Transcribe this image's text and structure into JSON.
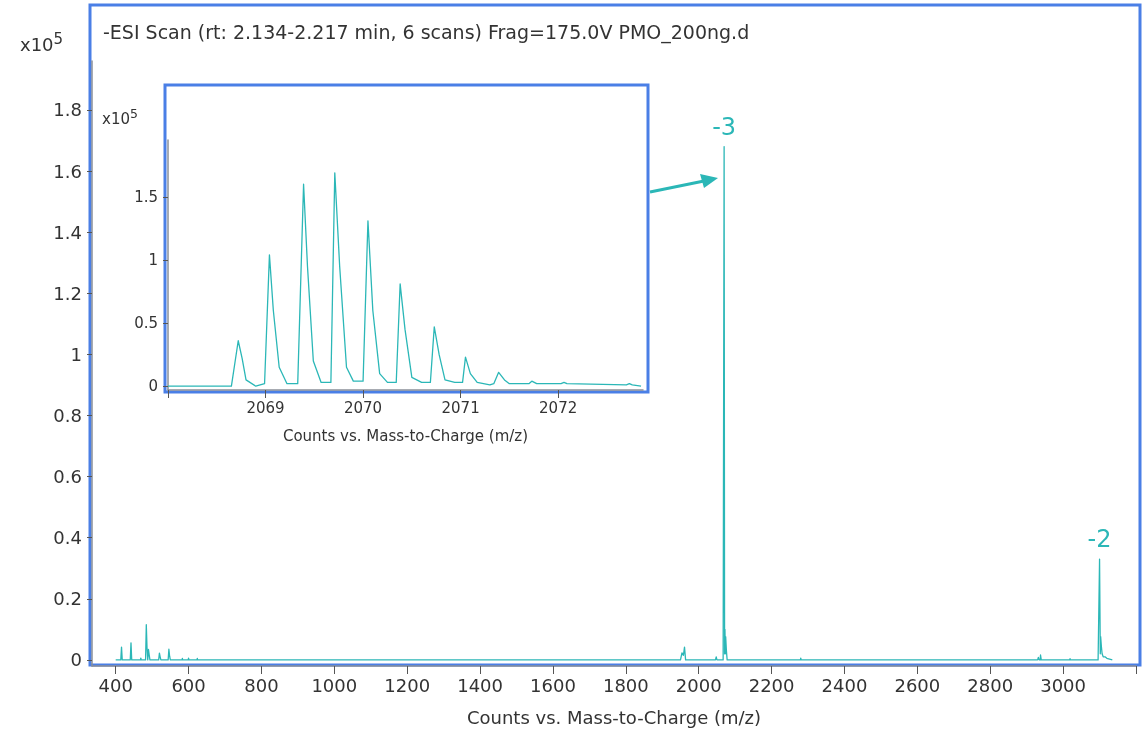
{
  "chart_data": [
    {
      "type": "line",
      "title": "-ESI Scan (rt: 2.134-2.217 min, 6 scans) Frag=175.0V PMO_200ng.d",
      "xlabel": "Counts vs. Mass-to-Charge (m/z)",
      "ylabel": "x10$^{5}$",
      "x": [
        400,
        414,
        416,
        418,
        440,
        442,
        444,
        468,
        469,
        470,
        482,
        484,
        486,
        488,
        490,
        492,
        494,
        518,
        520,
        522,
        524,
        544,
        546,
        548,
        550,
        582,
        583,
        584,
        599,
        600,
        601,
        623,
        624,
        625,
        1950,
        1954,
        1958,
        1961,
        1964,
        2046,
        2048,
        2050,
        2067,
        2069.7,
        2071,
        2072,
        2073,
        2074,
        2076,
        2078,
        2279,
        2280,
        2281,
        2930,
        2932,
        2934,
        2937,
        2938,
        2940,
        3018,
        3019,
        3020,
        3096,
        3100,
        3102,
        3103,
        3105,
        3107,
        3110,
        3115,
        3120,
        3135
      ],
      "series": [
        {
          "color": "#2bb7b7",
          "values": [
            0,
            0,
            0.042,
            0,
            0,
            0.056,
            0,
            0,
            0.006,
            0,
            0,
            0.115,
            0.04,
            0,
            0.034,
            0.016,
            0,
            0,
            0.022,
            0.01,
            0,
            0,
            0.035,
            0.012,
            0,
            0,
            0.005,
            0,
            0,
            0.006,
            0,
            0,
            0.005,
            0,
            0,
            0.023,
            0.015,
            0.042,
            0,
            0,
            0.01,
            0,
            0,
            1.68,
            0.02,
            0.1,
            0.02,
            0.076,
            0.03,
            0,
            0,
            0.006,
            0,
            0,
            0.008,
            0,
            0,
            0.016,
            0,
            0,
            0.004,
            0,
            0,
            0.33,
            0.02,
            0.076,
            0.044,
            0.02,
            0.01,
            0.01,
            0.005,
            0
          ]
        }
      ],
      "annotations": [
        {
          "text": "-3",
          "x": 2069.7,
          "y": 1.68
        },
        {
          "text": "-2",
          "x": 3100,
          "y": 0.33
        }
      ],
      "xlim": [
        335,
        3200
      ],
      "xticks": [
        400,
        600,
        800,
        1000,
        1200,
        1400,
        1600,
        1800,
        2000,
        2200,
        2400,
        2600,
        2800,
        3000,
        {
          "value": 3200,
          "label": null
        }
      ],
      "ylim": [
        -0.02,
        1.96
      ],
      "yticks": [
        0,
        0.2,
        0.4,
        0.6,
        0.8,
        1,
        1.2,
        1.4,
        1.6,
        1.8
      ],
      "marker": "none"
    },
    {
      "type": "line",
      "xlabel": "Counts vs. Mass-to-Charge (m/z)",
      "ylabel": "x10$^{5}$",
      "x": [
        2068.0,
        2068.65,
        2068.72,
        2068.76,
        2068.8,
        2068.9,
        2068.99,
        2069.04,
        2069.08,
        2069.14,
        2069.22,
        2069.33,
        2069.39,
        2069.43,
        2069.49,
        2069.57,
        2069.67,
        2069.71,
        2069.76,
        2069.83,
        2069.9,
        2070.0,
        2070.05,
        2070.1,
        2070.17,
        2070.25,
        2070.34,
        2070.38,
        2070.43,
        2070.5,
        2070.6,
        2070.69,
        2070.73,
        2070.78,
        2070.84,
        2070.94,
        2071.02,
        2071.05,
        2071.1,
        2071.17,
        2071.3,
        2071.34,
        2071.39,
        2071.45,
        2071.5,
        2071.7,
        2071.73,
        2071.78,
        2072.03,
        2072.06,
        2072.09,
        2072.7,
        2072.73,
        2072.76,
        2072.85
      ],
      "series": [
        {
          "color": "#2bb7b7",
          "values": [
            0,
            0,
            0.36,
            0.22,
            0.05,
            0,
            0.02,
            1.04,
            0.6,
            0.15,
            0.02,
            0.02,
            1.6,
            0.95,
            0.2,
            0.03,
            0.03,
            1.69,
            0.95,
            0.15,
            0.04,
            0.04,
            1.31,
            0.6,
            0.1,
            0.03,
            0.03,
            0.81,
            0.45,
            0.07,
            0.03,
            0.03,
            0.47,
            0.25,
            0.05,
            0.03,
            0.03,
            0.23,
            0.1,
            0.03,
            0.01,
            0.02,
            0.11,
            0.05,
            0.02,
            0.02,
            0.04,
            0.02,
            0.02,
            0.03,
            0.02,
            0.01,
            0.02,
            0.01,
            0
          ]
        }
      ],
      "xlim": [
        2068,
        2072.87
      ],
      "xticks": [
        {
          "value": 2068,
          "label": null
        },
        2069,
        2070,
        2071,
        2072
      ],
      "ylim": [
        -0.03,
        1.95
      ],
      "yticks": [
        0,
        0.5,
        1,
        1.5
      ],
      "marker": "none"
    }
  ]
}
